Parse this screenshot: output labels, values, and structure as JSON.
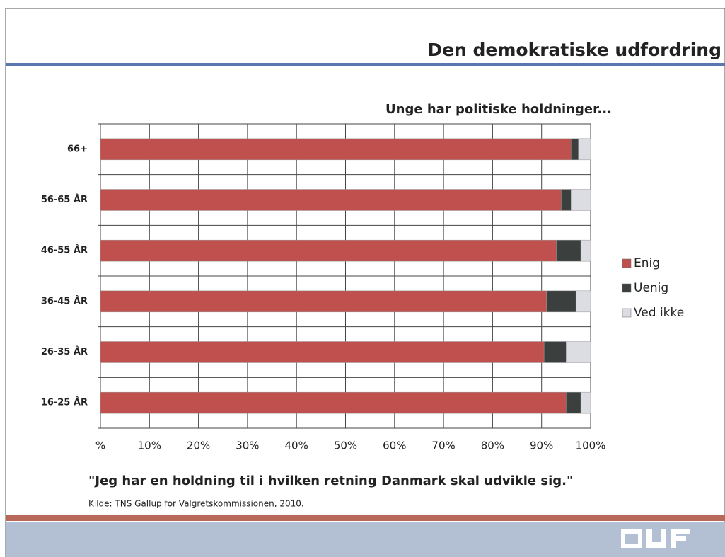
{
  "header": {
    "title": "Den demokratiske udfordring"
  },
  "chart_data": {
    "type": "stacked-bar-horizontal",
    "title": "Unge har politiske holdninger...",
    "caption": "\"Jeg har en holdning til i hvilken retning Danmark skal udvikle sig.\"",
    "source": "Kilde: TNS Gallup for Valgretskommissionen, 2010.",
    "categories": [
      "66+",
      "56-65 ÅR",
      "46-55 ÅR",
      "36-45 ÅR",
      "26-35 ÅR",
      "16-25 ÅR"
    ],
    "series": [
      {
        "name": "Enig",
        "color": "#c0504d",
        "values": [
          96,
          94,
          93,
          91,
          90.5,
          95
        ]
      },
      {
        "name": "Uenig",
        "color": "#3b403f",
        "values": [
          1.5,
          2,
          5,
          6,
          4.5,
          3
        ]
      },
      {
        "name": "Ved ikke",
        "color": "#dcdce3",
        "values": [
          2.5,
          4,
          2,
          3,
          5,
          2
        ]
      }
    ],
    "xlim": [
      0,
      100
    ],
    "xticks": [
      {
        "value": 0,
        "label": "%"
      },
      {
        "value": 10,
        "label": "10%"
      },
      {
        "value": 20,
        "label": "20%"
      },
      {
        "value": 30,
        "label": "30%"
      },
      {
        "value": 40,
        "label": "40%"
      },
      {
        "value": 50,
        "label": "50%"
      },
      {
        "value": 60,
        "label": "60%"
      },
      {
        "value": 70,
        "label": "70%"
      },
      {
        "value": 80,
        "label": "80%"
      },
      {
        "value": 90,
        "label": "90%"
      },
      {
        "value": 100,
        "label": "100%"
      }
    ],
    "grid": true,
    "legend": "right"
  }
}
